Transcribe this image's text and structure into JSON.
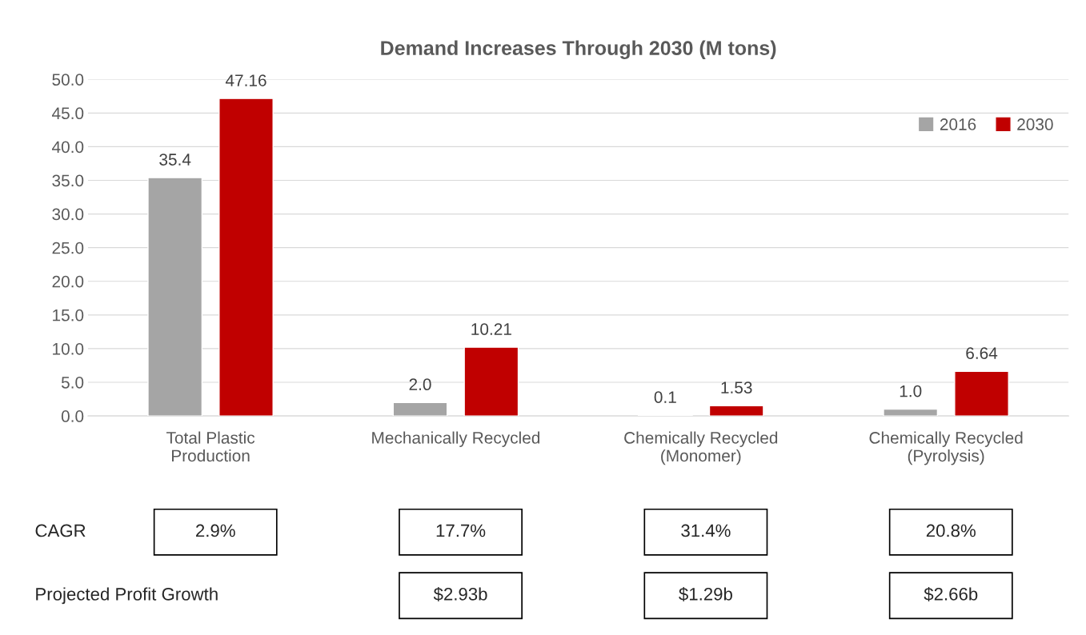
{
  "chart_data": {
    "type": "bar",
    "title": "Demand Increases Through 2030 (M tons)",
    "categories": [
      "Total Plastic\nProduction",
      "Mechanically Recycled",
      "Chemically Recycled\n(Monomer)",
      "Chemically Recycled\n(Pyrolysis)"
    ],
    "series": [
      {
        "name": "2016",
        "color": "#a5a5a5",
        "values": [
          35.4,
          2.0,
          0.1,
          1.0
        ],
        "value_labels": [
          "35.4",
          "2.0",
          "0.1",
          "1.0"
        ]
      },
      {
        "name": "2030",
        "color": "#c00000",
        "values": [
          47.16,
          10.21,
          1.53,
          6.64
        ],
        "value_labels": [
          "47.16",
          "10.21",
          "1.53",
          "6.64"
        ]
      }
    ],
    "ylim": [
      0,
      50
    ],
    "yticks": [
      {
        "value": 0,
        "label": "0.0"
      },
      {
        "value": 5,
        "label": "5.0"
      },
      {
        "value": 10,
        "label": "10.0"
      },
      {
        "value": 15,
        "label": "15.0"
      },
      {
        "value": 20,
        "label": "20.0"
      },
      {
        "value": 25,
        "label": "25.0"
      },
      {
        "value": 30,
        "label": "30.0"
      },
      {
        "value": 35,
        "label": "35.0"
      },
      {
        "value": 40,
        "label": "40.0"
      },
      {
        "value": 45,
        "label": "45.0"
      },
      {
        "value": 50,
        "label": "50.0"
      }
    ],
    "grid": "y",
    "legend": "top right",
    "annotations": [
      "CAGR",
      "2.9%",
      "17.7%",
      "31.4%",
      "20.8%",
      "Projected Profit Growth",
      "$2.93b",
      "$1.29b",
      "$2.66b"
    ]
  }
}
